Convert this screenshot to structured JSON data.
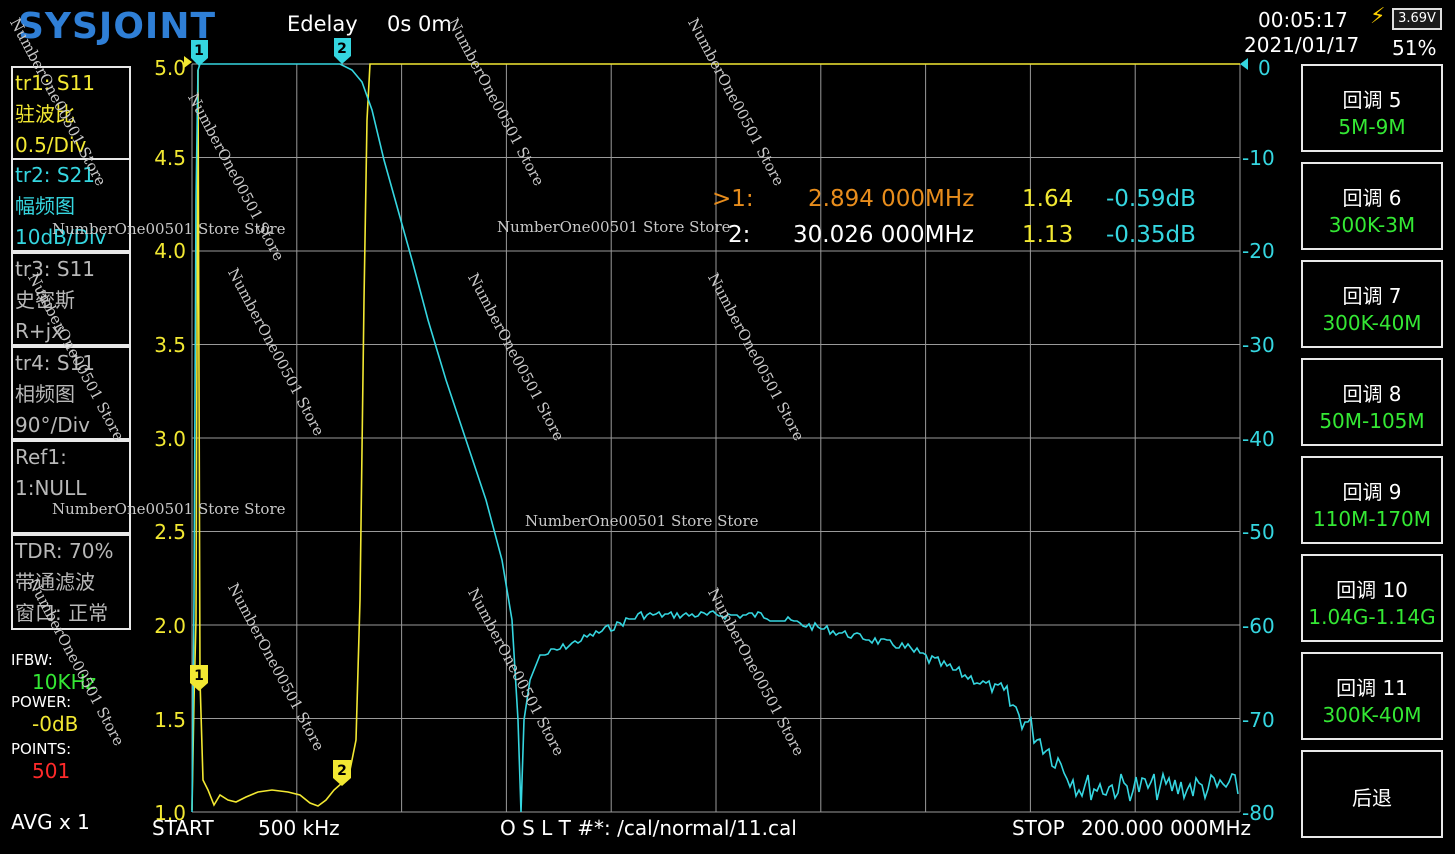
{
  "header": {
    "logo": "SYSJOINT",
    "edelay_label": "Edelay",
    "edelay_value": "0s 0m",
    "time": "00:05:17",
    "date": "2021/01/17",
    "battery_voltage": "3.69V",
    "battery_percent": "51%"
  },
  "traces": [
    {
      "l1": "tr1:  S11",
      "l2": "驻波比",
      "l3": "0.5/Div",
      "color": "yellow"
    },
    {
      "l1": "tr2:  S21",
      "l2": "幅频图",
      "l3": "10dB/Div",
      "color": "cyan"
    },
    {
      "l1": "tr3:  S11",
      "l2": "史密斯",
      "l3": "R+jx",
      "color": "gray"
    },
    {
      "l1": "tr4:  S11",
      "l2": "相频图",
      "l3": "90°/Div",
      "color": "gray"
    }
  ],
  "ref": {
    "l1": "Ref1:",
    "l2": "1:NULL"
  },
  "tdr": {
    "l1": "TDR: 70%",
    "l2": "带通滤波",
    "l3": "窗口: 正常"
  },
  "settings": {
    "ifbw_label": "IFBW:",
    "ifbw_value": "10KHz",
    "power_label": "POWER:",
    "power_value": "-0dB",
    "points_label": "POINTS:",
    "points_value": "501",
    "avg": "AVG x 1"
  },
  "left_axis": [
    "5.0",
    "4.5",
    "4.0",
    "3.5",
    "3.0",
    "2.5",
    "2.0",
    "1.5",
    "1.0"
  ],
  "right_axis": [
    "0",
    "-10",
    "-20",
    "-30",
    "-40",
    "-50",
    "-60",
    "-70",
    "-80"
  ],
  "markers": [
    {
      "id": ">1:",
      "freq": "2.894 000MHz",
      "swr": "1.64",
      "db": "-0.59dB"
    },
    {
      "id": "2:",
      "freq": "30.026 000MHz",
      "swr": "1.13",
      "db": "-0.35dB"
    }
  ],
  "marker_flags": [
    "1",
    "2",
    "1",
    "2"
  ],
  "side_menu": [
    {
      "l1": "回调 5",
      "l2": "5M-9M"
    },
    {
      "l1": "回调 6",
      "l2": "300K-3M"
    },
    {
      "l1": "回调 7",
      "l2": "300K-40M"
    },
    {
      "l1": "回调 8",
      "l2": "50M-105M"
    },
    {
      "l1": "回调 9",
      "l2": "110M-170M"
    },
    {
      "l1": "回调 10",
      "l2": "1.04G-1.14G"
    },
    {
      "l1": "回调 11",
      "l2": "300K-40M"
    },
    {
      "l1": "后退",
      "l2": ""
    }
  ],
  "footer": {
    "start_label": "START",
    "start_value": "500 kHz",
    "cal": "O S L T #*: /cal/normal/11.cal",
    "stop_label": "STOP",
    "stop_value": "200.000 000MHz"
  },
  "watermark": "NumberOne00501 Store",
  "watermark_long": "NumberOne00501 Store Store",
  "colors": {
    "s11": "#f2e832",
    "s21": "#35d6e0",
    "grid": "#9a9a9a"
  }
}
